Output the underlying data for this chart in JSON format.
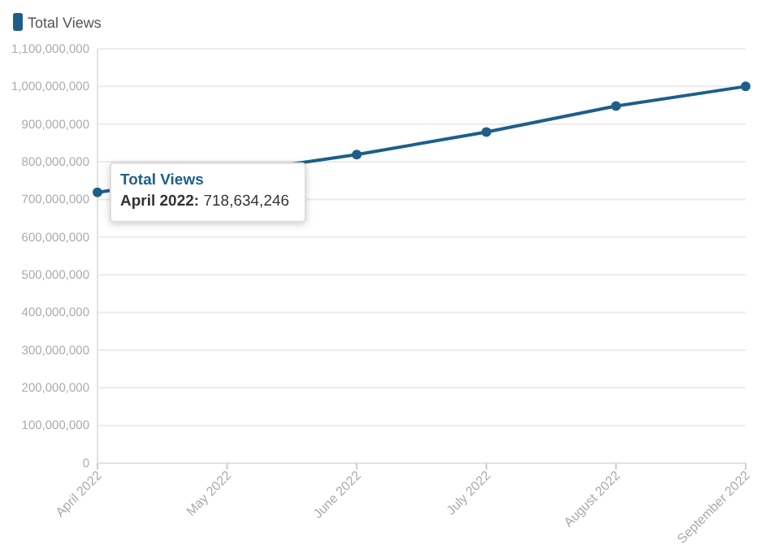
{
  "chart_data": {
    "type": "line",
    "categories": [
      "April 2022",
      "May 2022",
      "June 2022",
      "July 2022",
      "August 2022",
      "September 2022"
    ],
    "series": [
      {
        "name": "Total Views",
        "color": "#1d5f8a",
        "values": [
          718634246,
          null,
          819000000,
          879000000,
          948000000,
          1000000000
        ]
      }
    ],
    "ylim": [
      0,
      1100000000
    ],
    "yticks": [
      {
        "value": 0,
        "label": "0"
      },
      {
        "value": 100000000,
        "label": "100,000,000"
      },
      {
        "value": 200000000,
        "label": "200,000,000"
      },
      {
        "value": 300000000,
        "label": "300,000,000"
      },
      {
        "value": 400000000,
        "label": "400,000,000"
      },
      {
        "value": 500000000,
        "label": "500,000,000"
      },
      {
        "value": 600000000,
        "label": "600,000,000"
      },
      {
        "value": 700000000,
        "label": "700,000,000"
      },
      {
        "value": 800000000,
        "label": "800,000,000"
      },
      {
        "value": 900000000,
        "label": "900,000,000"
      },
      {
        "value": 1000000000,
        "label": "1,000,000,000"
      },
      {
        "value": 1100000000,
        "label": "1,100,000,000"
      }
    ],
    "grid": "y",
    "legend": "top left",
    "marker": "circle",
    "line_style": "solid",
    "annotations": [
      {
        "text": "Total Views",
        "x": "April 2022",
        "y": 718634246
      },
      {
        "text": "April 2022: 718,634,246",
        "x": "April 2022",
        "y": 718634246
      }
    ]
  }
}
